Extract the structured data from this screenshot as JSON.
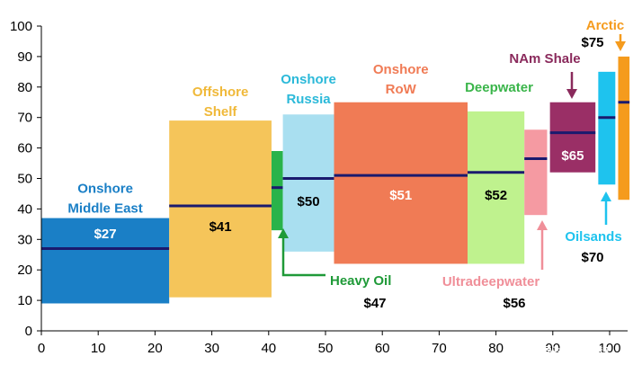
{
  "chart_data": {
    "type": "bar",
    "subtype": "variable-width cost curve",
    "title": "",
    "xlabel": "",
    "ylabel": "",
    "xlim": [
      0,
      100
    ],
    "ylim": [
      0,
      100
    ],
    "x_ticks": [
      0,
      10,
      20,
      30,
      40,
      50,
      60,
      70,
      80,
      90,
      100
    ],
    "y_ticks": [
      0,
      10,
      20,
      30,
      40,
      50,
      60,
      70,
      80,
      90,
      100
    ],
    "grid": false,
    "segments": [
      {
        "name": "Onshore\nMiddle East",
        "x_start": 0,
        "x_end": 22.5,
        "low": 9,
        "high": 37,
        "mean": 27,
        "price_label": "$27",
        "color": "#1a7fc6",
        "label_color": "#1a7fc6",
        "price_color": "#ffffff"
      },
      {
        "name": "Offshore\nShelf",
        "x_start": 22.5,
        "x_end": 40.5,
        "low": 11,
        "high": 69,
        "mean": 41,
        "price_label": "$41",
        "color": "#f5c55a",
        "label_color": "#f0b93a",
        "price_color": "#000000"
      },
      {
        "name": "Heavy Oil",
        "x_start": 40.5,
        "x_end": 42.5,
        "low": 33,
        "high": 59,
        "mean": 47,
        "price_label": "$47",
        "color": "#29b34a",
        "label_color": "#1f9a38",
        "price_color": "#000000"
      },
      {
        "name": "Onshore\nRussia",
        "x_start": 42.5,
        "x_end": 51.5,
        "low": 26,
        "high": 71,
        "mean": 50,
        "price_label": "$50",
        "color": "#a9dff0",
        "label_color": "#2bb9d9",
        "price_color": "#000000"
      },
      {
        "name": "Onshore\nRoW",
        "x_start": 51.5,
        "x_end": 75,
        "low": 22,
        "high": 75,
        "mean": 51,
        "price_label": "$51",
        "color": "#f07b55",
        "label_color": "#f07b55",
        "price_color": "#ffffff"
      },
      {
        "name": "Deepwater",
        "x_start": 75,
        "x_end": 85,
        "low": 22,
        "high": 72,
        "mean": 52,
        "price_label": "$52",
        "color": "#bff28e",
        "label_color": "#3ab54a",
        "price_color": "#000000"
      },
      {
        "name": "Ultradeepwater",
        "x_start": 85,
        "x_end": 89,
        "low": 38,
        "high": 66,
        "mean": 56.5,
        "price_label": "$56",
        "color": "#f59aa2",
        "label_color": "#f08f99",
        "price_color": "#000000"
      },
      {
        "name": "NAm Shale",
        "x_start": 89.5,
        "x_end": 97.5,
        "low": 52,
        "high": 75,
        "mean": 65,
        "price_label": "$65",
        "color": "#9a2f66",
        "label_color": "#8a2a5c",
        "price_color": "#ffffff"
      },
      {
        "name": "Oilsands",
        "x_start": 98,
        "x_end": 101,
        "low": 48,
        "high": 85,
        "mean": 70,
        "price_label": "$70",
        "color": "#1ec3ee",
        "label_color": "#1ec3ee",
        "price_color": "#000000"
      },
      {
        "name": "Arctic",
        "x_start": 101.5,
        "x_end": 103.5,
        "low": 43,
        "high": 90,
        "mean": 75,
        "price_label": "$75",
        "color": "#f59b1d",
        "label_color": "#f59b1d",
        "price_color": "#000000"
      }
    ],
    "mean_line_color": "#1a1a6e"
  },
  "watermark": "雪球：新智"
}
